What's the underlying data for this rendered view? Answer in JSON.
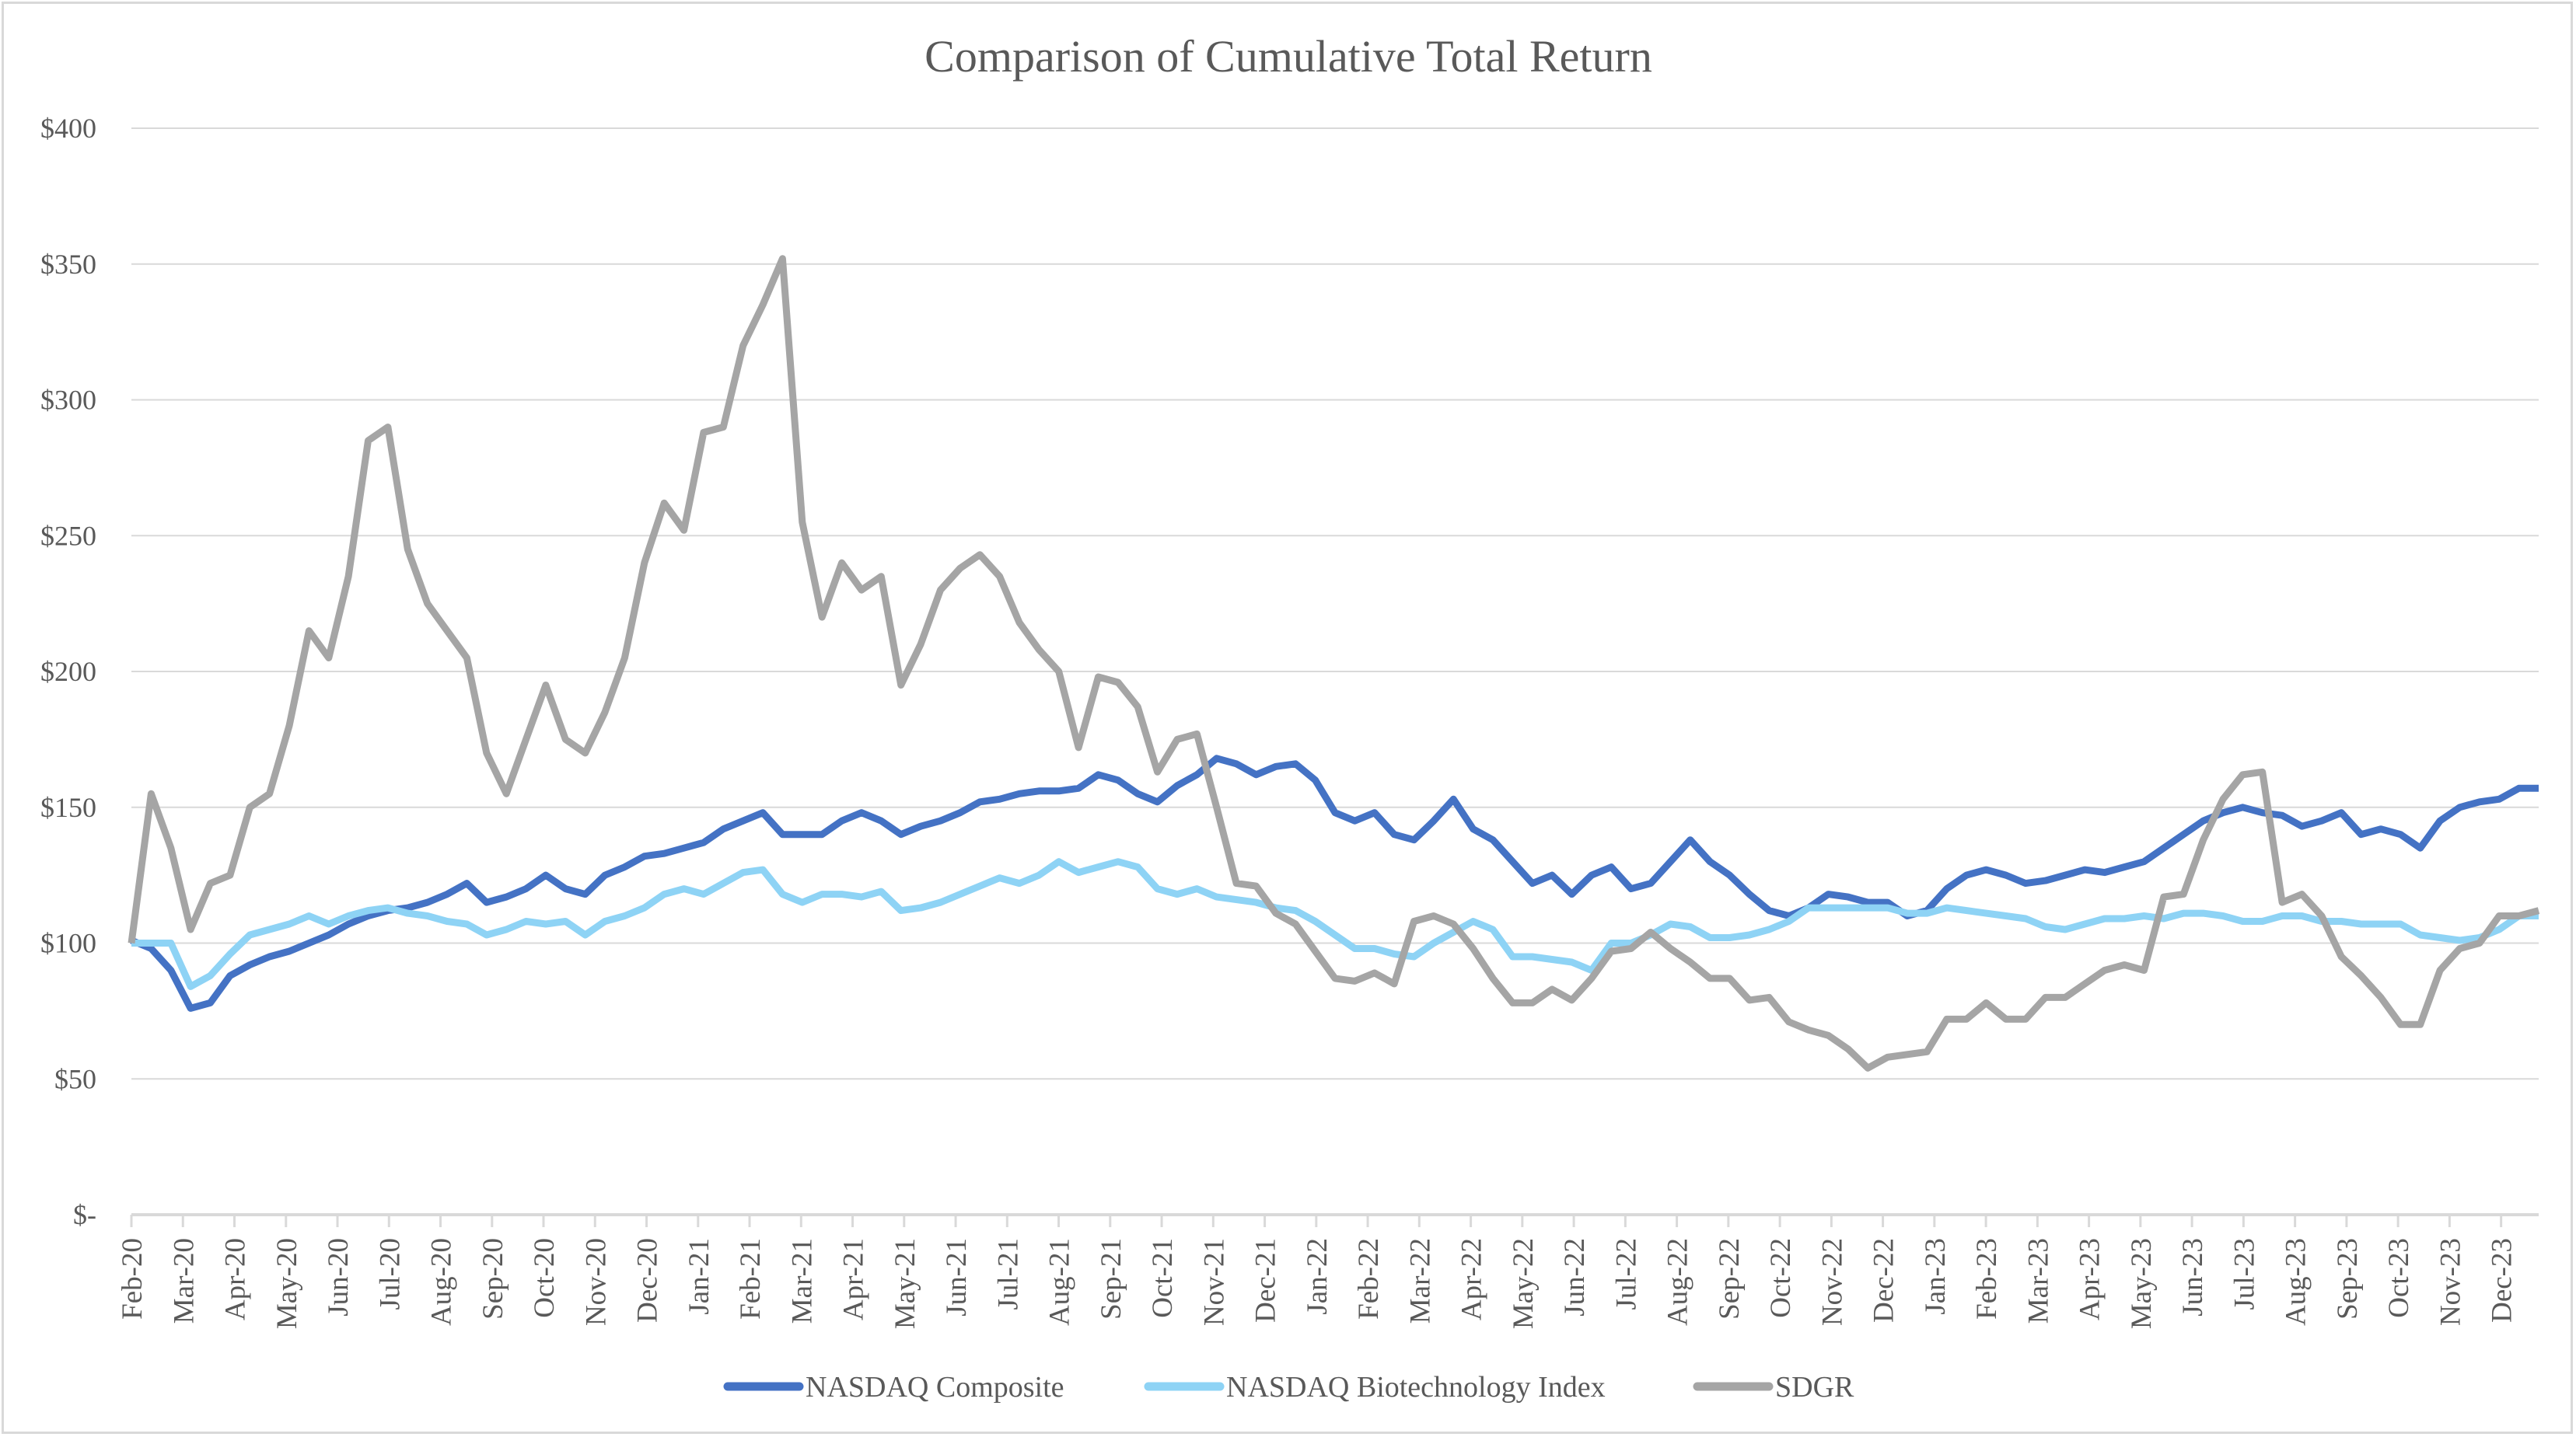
{
  "chart_data": {
    "type": "line",
    "title": "Comparison of Cumulative Total Return",
    "xlabel": "",
    "ylabel": "",
    "ylim": [
      0,
      400
    ],
    "y_ticks": [
      0,
      50,
      100,
      150,
      200,
      250,
      300,
      350,
      400
    ],
    "y_tick_labels": [
      "$-",
      "$50",
      "$100",
      "$150",
      "$200",
      "$250",
      "$300",
      "$350",
      "$400"
    ],
    "grid": "horizontal",
    "legend_position": "bottom",
    "x_tick_labels": [
      "Feb-20",
      "Mar-20",
      "Apr-20",
      "May-20",
      "Jun-20",
      "Jul-20",
      "Aug-20",
      "Sep-20",
      "Oct-20",
      "Nov-20",
      "Dec-20",
      "Jan-21",
      "Feb-21",
      "Mar-21",
      "Apr-21",
      "May-21",
      "Jun-21",
      "Jul-21",
      "Aug-21",
      "Sep-21",
      "Oct-21",
      "Nov-21",
      "Dec-21",
      "Jan-22",
      "Feb-22",
      "Mar-22",
      "Apr-22",
      "May-22",
      "Jun-22",
      "Jul-22",
      "Aug-22",
      "Sep-22",
      "Oct-22",
      "Nov-22",
      "Dec-22",
      "Jan-23",
      "Feb-23",
      "Mar-23",
      "Apr-23",
      "May-23",
      "Jun-23",
      "Jul-23",
      "Aug-23",
      "Sep-23",
      "Oct-23",
      "Nov-23",
      "Dec-23"
    ],
    "x_range_months": [
      0,
      46.73
    ],
    "series": [
      {
        "name": "NASDAQ Composite",
        "color": "#4472C4",
        "values": [
          101,
          98,
          90,
          76,
          78,
          88,
          92,
          95,
          97,
          100,
          103,
          107,
          110,
          112,
          113,
          115,
          118,
          122,
          115,
          117,
          120,
          125,
          120,
          118,
          125,
          128,
          132,
          133,
          135,
          137,
          142,
          145,
          148,
          140,
          140,
          140,
          145,
          148,
          145,
          140,
          143,
          145,
          148,
          152,
          153,
          155,
          156,
          156,
          157,
          162,
          160,
          155,
          152,
          158,
          162,
          168,
          166,
          162,
          165,
          166,
          160,
          148,
          145,
          148,
          140,
          138,
          145,
          153,
          142,
          138,
          130,
          122,
          125,
          118,
          125,
          128,
          120,
          122,
          130,
          138,
          130,
          125,
          118,
          112,
          110,
          113,
          118,
          117,
          115,
          115,
          110,
          112,
          120,
          125,
          127,
          125,
          122,
          123,
          125,
          127,
          126,
          128,
          130,
          135,
          140,
          145,
          148,
          150,
          148,
          147,
          143,
          145,
          148,
          140,
          142,
          140,
          135,
          145,
          150,
          152,
          153,
          157,
          157
        ]
      },
      {
        "name": "NASDAQ Biotechnology Index",
        "color": "#8ED3F5",
        "values": [
          100,
          100,
          100,
          84,
          88,
          96,
          103,
          105,
          107,
          110,
          107,
          110,
          112,
          113,
          111,
          110,
          108,
          107,
          103,
          105,
          108,
          107,
          108,
          103,
          108,
          110,
          113,
          118,
          120,
          118,
          122,
          126,
          127,
          118,
          115,
          118,
          118,
          117,
          119,
          112,
          113,
          115,
          118,
          121,
          124,
          122,
          125,
          130,
          126,
          128,
          130,
          128,
          120,
          118,
          120,
          117,
          116,
          115,
          113,
          112,
          108,
          103,
          98,
          98,
          96,
          95,
          100,
          104,
          108,
          105,
          95,
          95,
          94,
          93,
          90,
          100,
          100,
          103,
          107,
          106,
          102,
          102,
          103,
          105,
          108,
          113,
          113,
          113,
          113,
          113,
          111,
          111,
          113,
          112,
          111,
          110,
          109,
          106,
          105,
          107,
          109,
          109,
          110,
          109,
          111,
          111,
          110,
          108,
          108,
          110,
          110,
          108,
          108,
          107,
          107,
          107,
          103,
          102,
          101,
          102,
          105,
          110,
          110
        ]
      },
      {
        "name": "SDGR",
        "color": "#A5A5A5",
        "values": [
          100,
          155,
          135,
          105,
          122,
          125,
          150,
          155,
          180,
          215,
          205,
          235,
          285,
          290,
          245,
          225,
          215,
          205,
          170,
          155,
          175,
          195,
          175,
          170,
          185,
          205,
          240,
          262,
          252,
          288,
          290,
          320,
          335,
          352,
          255,
          220,
          240,
          230,
          235,
          195,
          210,
          230,
          238,
          243,
          235,
          218,
          208,
          200,
          172,
          198,
          196,
          187,
          163,
          175,
          177,
          150,
          122,
          121,
          111,
          107,
          97,
          87,
          86,
          89,
          85,
          108,
          110,
          107,
          98,
          87,
          78,
          78,
          83,
          79,
          87,
          97,
          98,
          104,
          98,
          93,
          87,
          87,
          79,
          80,
          71,
          68,
          66,
          61,
          54,
          58,
          59,
          60,
          72,
          72,
          78,
          72,
          72,
          80,
          80,
          85,
          90,
          92,
          90,
          117,
          118,
          138,
          153,
          162,
          163,
          115,
          118,
          110,
          95,
          88,
          80,
          70,
          70,
          90,
          98,
          100,
          110,
          110,
          112
        ]
      }
    ]
  }
}
